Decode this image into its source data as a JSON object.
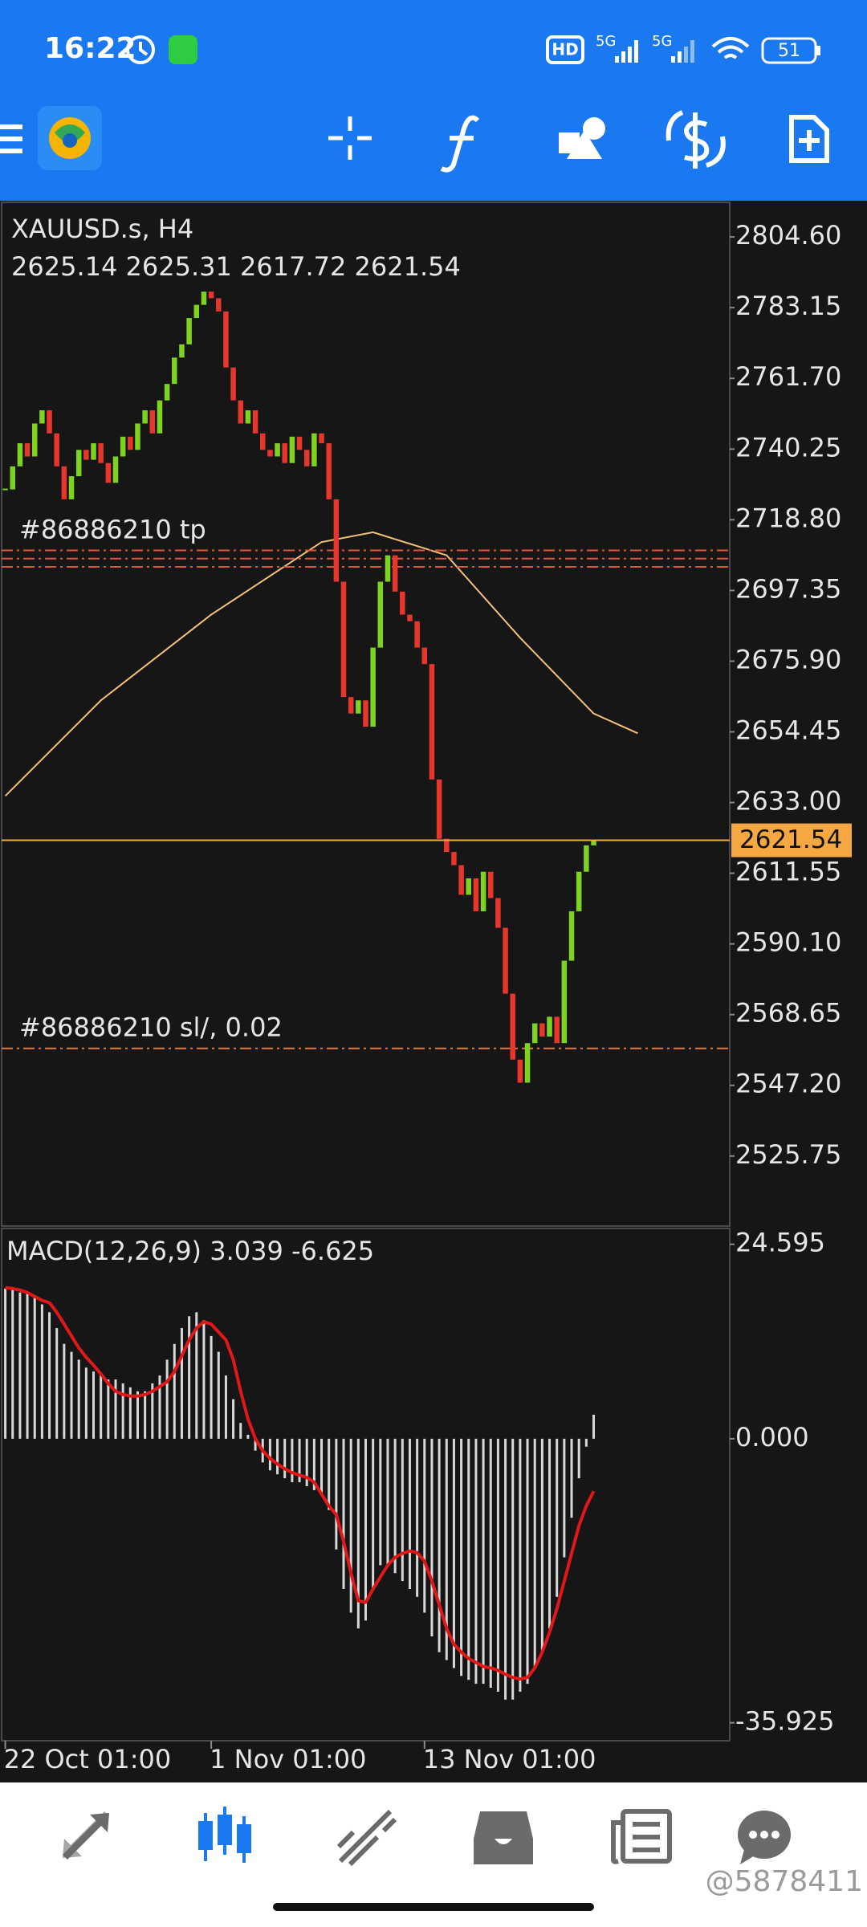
{
  "status_bar": {
    "time": "16:22",
    "hd": "HD",
    "network": [
      "5G",
      "5G"
    ],
    "battery": "51"
  },
  "chart_data": [
    {
      "type": "candlestick",
      "title": "XAUUSD.s, H4",
      "subtitle": "2625.14 2625.31 2617.72 2621.54",
      "values": [
        2728,
        2735,
        2742,
        2738,
        2748,
        2752,
        2745,
        2735,
        2725,
        2732,
        2740,
        2737,
        2742,
        2736,
        2730,
        2738,
        2744,
        2740,
        2748,
        2752,
        2745,
        2755,
        2760,
        2768,
        2772,
        2780,
        2784,
        2788,
        2786,
        2782,
        2765,
        2755,
        2748,
        2752,
        2745,
        2740,
        2738,
        2742,
        2736,
        2744,
        2740,
        2735,
        2745,
        2742,
        2725,
        2700,
        2665,
        2660,
        2664,
        2656,
        2680,
        2700,
        2708,
        2697,
        2690,
        2688,
        2680,
        2675,
        2640,
        2622,
        2618,
        2614,
        2605,
        2610,
        2600,
        2612,
        2604,
        2595,
        2575,
        2555,
        2548,
        2560,
        2566,
        2562,
        2568,
        2560,
        2585,
        2600,
        2612,
        2620,
        2621.54
      ],
      "up_color": "#7ed321",
      "down_color": "#e8362c",
      "series": [
        {
          "color": "#f2c27a",
          "x": [
            0,
            13,
            28,
            43,
            50,
            60,
            70,
            80,
            86
          ],
          "values": [
            2635,
            2664,
            2690,
            2712,
            2715,
            2708,
            2683,
            2660,
            2654
          ]
        }
      ],
      "price_line": {
        "value": 2621.54,
        "color": "#f5a742"
      },
      "order_lines": [
        {
          "label": "#86886210 tp",
          "values": [
            2709.5,
            2707,
            2704.5
          ],
          "color": "#e0553a"
        },
        {
          "label": "#86886210 sl/, 0.02",
          "values": [
            2558.4
          ],
          "color": "#e07a3a"
        }
      ],
      "xlim": [
        -0.5,
        98.5
      ],
      "ylim": [
        2504.5,
        2815.1
      ],
      "yticks": [
        {
          "value": 2804.6,
          "label": "2804.60"
        },
        2783.15,
        {
          "value": 2761.7,
          "label": "2761.70"
        },
        2740.25,
        {
          "value": 2718.8,
          "label": "2718.80"
        },
        2697.35,
        {
          "value": 2675.9,
          "label": "2675.90"
        },
        2654.45,
        {
          "value": 2633,
          "label": "2633.00"
        },
        2611.55,
        {
          "value": 2590.1,
          "label": "2590.10"
        },
        2568.65,
        {
          "value": 2547.2,
          "label": "2547.20"
        },
        2525.75
      ]
    },
    {
      "type": "macd",
      "title": "MACD(12,26,9) 3.039 -6.625",
      "series": [
        {
          "color": "#d8d8d8",
          "values": [
            19,
            19,
            18.5,
            18.5,
            18,
            17,
            16,
            14,
            12,
            11,
            10,
            9,
            8.5,
            8,
            7.5,
            7.5,
            7,
            6.5,
            6,
            6,
            7,
            8,
            10,
            12,
            14,
            15.5,
            16,
            15,
            13,
            11,
            8,
            5,
            2,
            0.5,
            -1.5,
            -3,
            -4,
            -4.5,
            -5,
            -5.5,
            -5.5,
            -6,
            -6.5,
            -7,
            -9,
            -14,
            -19,
            -22,
            -24,
            -23,
            -19,
            -16,
            -16,
            -17,
            -18,
            -19,
            -20,
            -22,
            -25,
            -27,
            -28,
            -29,
            -30,
            -30.5,
            -31,
            -31,
            -31.5,
            -32,
            -33,
            -33,
            -32,
            -31,
            -29,
            -27,
            -24,
            -20,
            -15,
            -10,
            -5,
            -1,
            3.039
          ]
        },
        {
          "color": "#e01818",
          "values": [
            19.1,
            19,
            18.8,
            18.5,
            18,
            17.5,
            17.2,
            16,
            14.5,
            13,
            11.5,
            10.3,
            9.3,
            8.2,
            7,
            6,
            5.6,
            5.4,
            5.4,
            5.6,
            6,
            6.6,
            7.2,
            8.5,
            10.5,
            12.5,
            14,
            14.8,
            14.5,
            13.5,
            12.5,
            10,
            6,
            2.5,
            0,
            -1.5,
            -2.5,
            -3.2,
            -3.8,
            -4.3,
            -4.6,
            -4.9,
            -5.5,
            -7,
            -8.5,
            -9.6,
            -13,
            -17,
            -20.5,
            -20.7,
            -19,
            -17.5,
            -16,
            -15,
            -14.5,
            -14.2,
            -14.4,
            -15.5,
            -18,
            -21,
            -24,
            -26,
            -27,
            -27.8,
            -28.3,
            -28.8,
            -29,
            -29.3,
            -29.8,
            -30.2,
            -30.4,
            -30.2,
            -29,
            -27,
            -24.5,
            -21.5,
            -18,
            -14.5,
            -11,
            -8.5,
            -6.625
          ]
        }
      ],
      "xlim": [
        -0.5,
        98.5
      ],
      "ylim": [
        -38.2,
        26.6
      ],
      "yticks": [
        24.595,
        {
          "value": 0,
          "label": "0.000"
        },
        -35.925
      ],
      "xticks": [
        {
          "value": 0,
          "label": "22 Oct 01:00"
        },
        {
          "value": 28,
          "label": "1 Nov 01:00"
        },
        {
          "value": 57,
          "label": "13 Nov 01:00"
        }
      ]
    }
  ],
  "watermark": "@5878411"
}
